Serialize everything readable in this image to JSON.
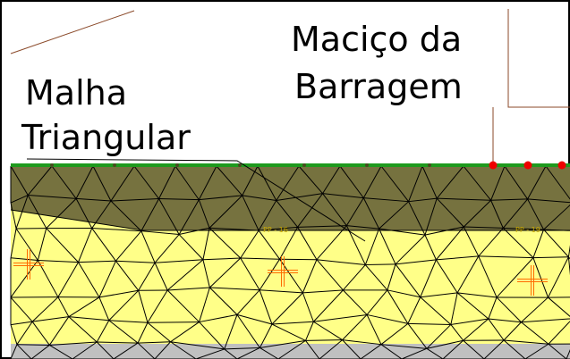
{
  "labels": {
    "malha_line1": "Malha",
    "malha_line2": "Triangular",
    "macico_line1": "Maciço da",
    "macico_line2": "Barragem"
  },
  "piezometers": [
    {
      "label": "PP - 16"
    },
    {
      "label": "PP - 19"
    }
  ],
  "colors": {
    "dam_fill": "#76723f",
    "foundation_fill": "#ffff88",
    "bedrock_fill": "#c0c0c0",
    "crest_line": "#1e9a1e",
    "mesh_line": "#000000",
    "marker_red": "#ee0000",
    "cross_color": "#ff6a00",
    "leader_line": "#8b4a2a"
  }
}
